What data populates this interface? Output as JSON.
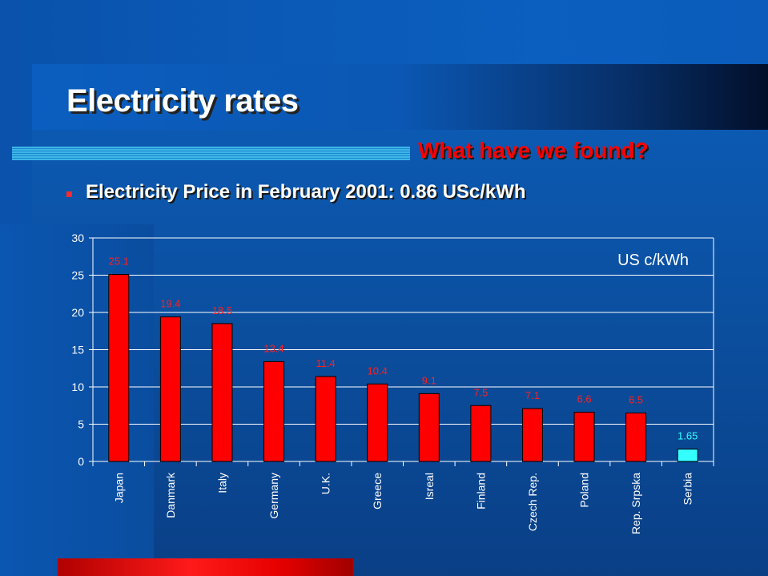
{
  "slide": {
    "title": "Electricity rates",
    "subtitle": "What have we found?",
    "bullet": "Electricity Price in February 2001: 0.86 USc/kWh"
  },
  "colors": {
    "bar": "#ff0000",
    "highlight_bar": "#33ffff",
    "value_label": "#ff2020",
    "highlight_label": "#33ffff"
  },
  "chart_data": {
    "type": "bar",
    "categories": [
      "Japan",
      "Danmark",
      "Italy",
      "Germany",
      "U.K.",
      "Greece",
      "Isreal",
      "Finland",
      "Czech Rep.",
      "Poland",
      "Rep. Srpska",
      "Serbia"
    ],
    "values": [
      25.1,
      19.4,
      18.5,
      13.4,
      11.4,
      10.4,
      9.1,
      7.5,
      7.1,
      6.6,
      6.5,
      1.65
    ],
    "value_labels": [
      "25.1",
      "19.4",
      "18.5",
      "13.4",
      "11.4",
      "10.4",
      "9.1",
      "7.5",
      "7.1",
      "6.6",
      "6.5",
      "1.65"
    ],
    "highlight_category": "Serbia",
    "unit_label": "US c/kWh",
    "ylim": [
      0,
      30
    ],
    "yticks": [
      0,
      5,
      10,
      15,
      20,
      25,
      30
    ],
    "grid": true,
    "xlabel": "",
    "ylabel": ""
  }
}
